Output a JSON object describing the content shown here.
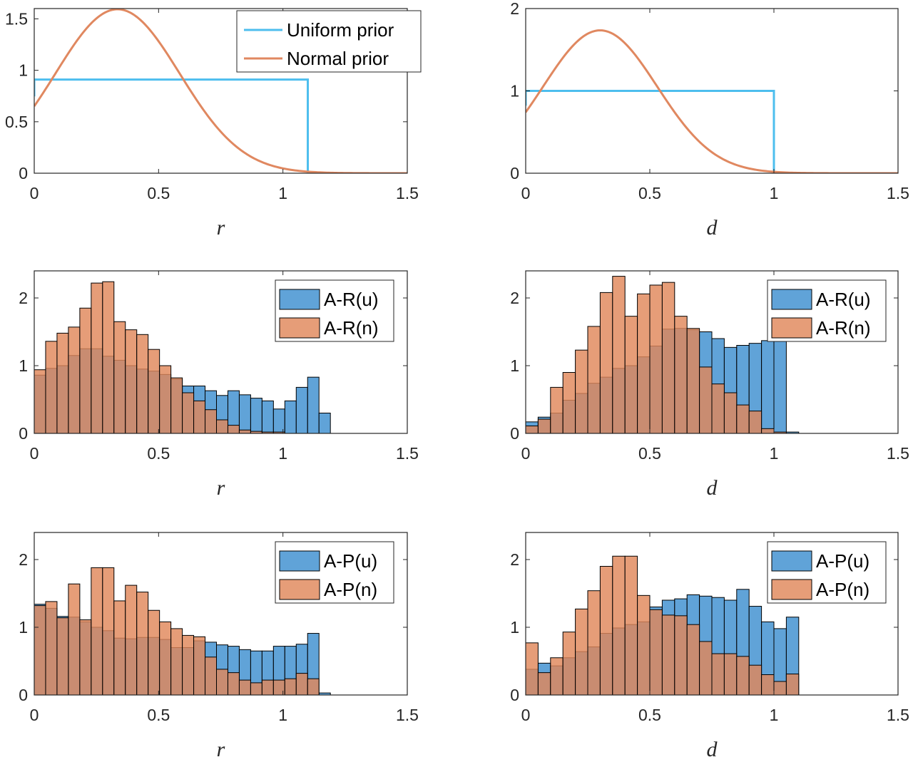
{
  "colors": {
    "uniform": "#4DBEEE",
    "normal": "#D95319",
    "hist_u": "#0072BD",
    "hist_n": "#D95319"
  },
  "chart_data": [
    {
      "id": "prior-r",
      "type": "line",
      "xlabel": "r",
      "xlim": [
        0,
        1.5
      ],
      "ylim": [
        0,
        1.6
      ],
      "xticks": [
        0,
        0.5,
        1,
        1.5
      ],
      "xticklabels": [
        "0",
        "0.5",
        "1",
        "1.5"
      ],
      "yticks": [
        0,
        0.5,
        1,
        1.5
      ],
      "yticklabels": [
        "0",
        "0.5",
        "1",
        "1.5"
      ],
      "legend": [
        "Uniform prior",
        "Normal prior"
      ],
      "uniform": {
        "low": 0,
        "high": 1.1,
        "height": 0.91
      },
      "normal": {
        "mu": 0.335,
        "sigma": 0.2504
      }
    },
    {
      "id": "prior-d",
      "type": "line",
      "xlabel": "d",
      "xlim": [
        0,
        1.5
      ],
      "ylim": [
        0,
        2
      ],
      "xticks": [
        0,
        0.5,
        1,
        1.5
      ],
      "xticklabels": [
        "0",
        "0.5",
        "1",
        "1.5"
      ],
      "yticks": [
        0,
        1,
        2
      ],
      "yticklabels": [
        "0",
        "1",
        "2"
      ],
      "legend": [],
      "uniform": {
        "low": 0,
        "high": 1.0,
        "height": 1.0
      },
      "normal": {
        "mu": 0.3,
        "sigma": 0.2299
      }
    },
    {
      "id": "hist-ar-r",
      "type": "bar",
      "xlabel": "r",
      "xlim": [
        0,
        1.5
      ],
      "ylim": [
        0,
        2.4
      ],
      "xticks": [
        0,
        0.5,
        1,
        1.5
      ],
      "xticklabels": [
        "0",
        "0.5",
        "1",
        "1.5"
      ],
      "yticks": [
        0,
        1,
        2
      ],
      "yticklabels": [
        "0",
        "1",
        "2"
      ],
      "legend": [
        "A-R(u)",
        "A-R(n)"
      ],
      "bin_start": 0,
      "bin_width": 0.0458,
      "series": [
        {
          "values": [
            0.86,
            0.96,
            1.0,
            1.15,
            1.25,
            1.25,
            1.14,
            1.08,
            1.0,
            0.95,
            0.92,
            0.87,
            0.8,
            0.7,
            0.7,
            0.63,
            0.56,
            0.63,
            0.57,
            0.52,
            0.48,
            0.36,
            0.48,
            0.68,
            0.83,
            0.3
          ]
        },
        {
          "values": [
            0.94,
            1.36,
            1.48,
            1.57,
            1.85,
            2.22,
            2.24,
            1.65,
            1.53,
            1.46,
            1.24,
            1.0,
            0.82,
            0.6,
            0.48,
            0.35,
            0.2,
            0.12,
            0.05,
            0.03,
            0.02,
            0.02,
            0,
            0,
            0,
            0
          ]
        }
      ]
    },
    {
      "id": "hist-ar-d",
      "type": "bar",
      "xlabel": "d",
      "xlim": [
        0,
        1.5
      ],
      "ylim": [
        0,
        2.4
      ],
      "xticks": [
        0,
        0.5,
        1,
        1.5
      ],
      "xticklabels": [
        "0",
        "0.5",
        "1",
        "1.5"
      ],
      "yticks": [
        0,
        1,
        2
      ],
      "yticklabels": [
        "0",
        "1",
        "2"
      ],
      "legend": [
        "A-R(u)",
        "A-R(n)"
      ],
      "bin_start": 0,
      "bin_width": 0.05,
      "series": [
        {
          "values": [
            0.17,
            0.24,
            0.3,
            0.49,
            0.59,
            0.74,
            0.83,
            0.96,
            1.0,
            1.13,
            1.29,
            1.54,
            1.55,
            1.53,
            1.5,
            1.4,
            1.27,
            1.3,
            1.33,
            1.37,
            1.43,
            0.02
          ]
        },
        {
          "values": [
            0.11,
            0.21,
            0.68,
            0.9,
            1.23,
            1.58,
            2.08,
            2.32,
            1.73,
            2.06,
            2.19,
            2.23,
            1.73,
            1.55,
            0.98,
            0.73,
            0.6,
            0.42,
            0.33,
            0.07,
            0.02,
            0
          ]
        }
      ]
    },
    {
      "id": "hist-ap-r",
      "type": "bar",
      "xlabel": "r",
      "xlim": [
        0,
        1.5
      ],
      "ylim": [
        0,
        2.4
      ],
      "xticks": [
        0,
        0.5,
        1,
        1.5
      ],
      "xticklabels": [
        "0",
        "0.5",
        "1",
        "1.5"
      ],
      "yticks": [
        0,
        1,
        2
      ],
      "yticklabels": [
        "0",
        "1",
        "2"
      ],
      "legend": [
        "A-P(u)",
        "A-P(n)"
      ],
      "bin_start": 0,
      "bin_width": 0.0458,
      "series": [
        {
          "values": [
            1.34,
            1.28,
            1.16,
            1.15,
            1.08,
            1.0,
            0.95,
            0.84,
            0.83,
            0.85,
            0.85,
            0.82,
            0.7,
            0.7,
            0.8,
            0.78,
            0.74,
            0.72,
            0.67,
            0.65,
            0.65,
            0.72,
            0.72,
            0.75,
            0.91,
            0.03
          ]
        },
        {
          "values": [
            1.32,
            1.38,
            1.14,
            1.64,
            1.11,
            1.88,
            1.88,
            1.39,
            1.62,
            1.52,
            1.25,
            1.08,
            0.98,
            0.88,
            0.86,
            0.56,
            0.38,
            0.33,
            0.22,
            0.18,
            0.22,
            0.22,
            0.24,
            0.32,
            0.24,
            0
          ]
        }
      ]
    },
    {
      "id": "hist-ap-d",
      "type": "bar",
      "xlabel": "d",
      "xlim": [
        0,
        1.5
      ],
      "ylim": [
        0,
        2.4
      ],
      "xticks": [
        0,
        0.5,
        1,
        1.5
      ],
      "xticklabels": [
        "0",
        "0.5",
        "1",
        "1.5"
      ],
      "yticks": [
        0,
        1,
        2
      ],
      "yticklabels": [
        "0",
        "1",
        "2"
      ],
      "legend": [
        "A-P(u)",
        "A-P(n)"
      ],
      "bin_start": 0,
      "bin_width": 0.05,
      "series": [
        {
          "values": [
            0.38,
            0.47,
            0.43,
            0.55,
            0.64,
            0.71,
            0.91,
            0.99,
            1.04,
            1.08,
            1.3,
            1.4,
            1.42,
            1.48,
            1.46,
            1.44,
            1.4,
            1.56,
            1.31,
            1.08,
            0.98,
            1.15
          ]
        },
        {
          "values": [
            0.77,
            0.33,
            0.55,
            0.93,
            1.27,
            1.54,
            1.9,
            2.05,
            2.05,
            1.47,
            1.26,
            1.18,
            1.17,
            1.04,
            0.79,
            0.61,
            0.61,
            0.57,
            0.44,
            0.3,
            0.2,
            0.31
          ]
        }
      ]
    }
  ]
}
